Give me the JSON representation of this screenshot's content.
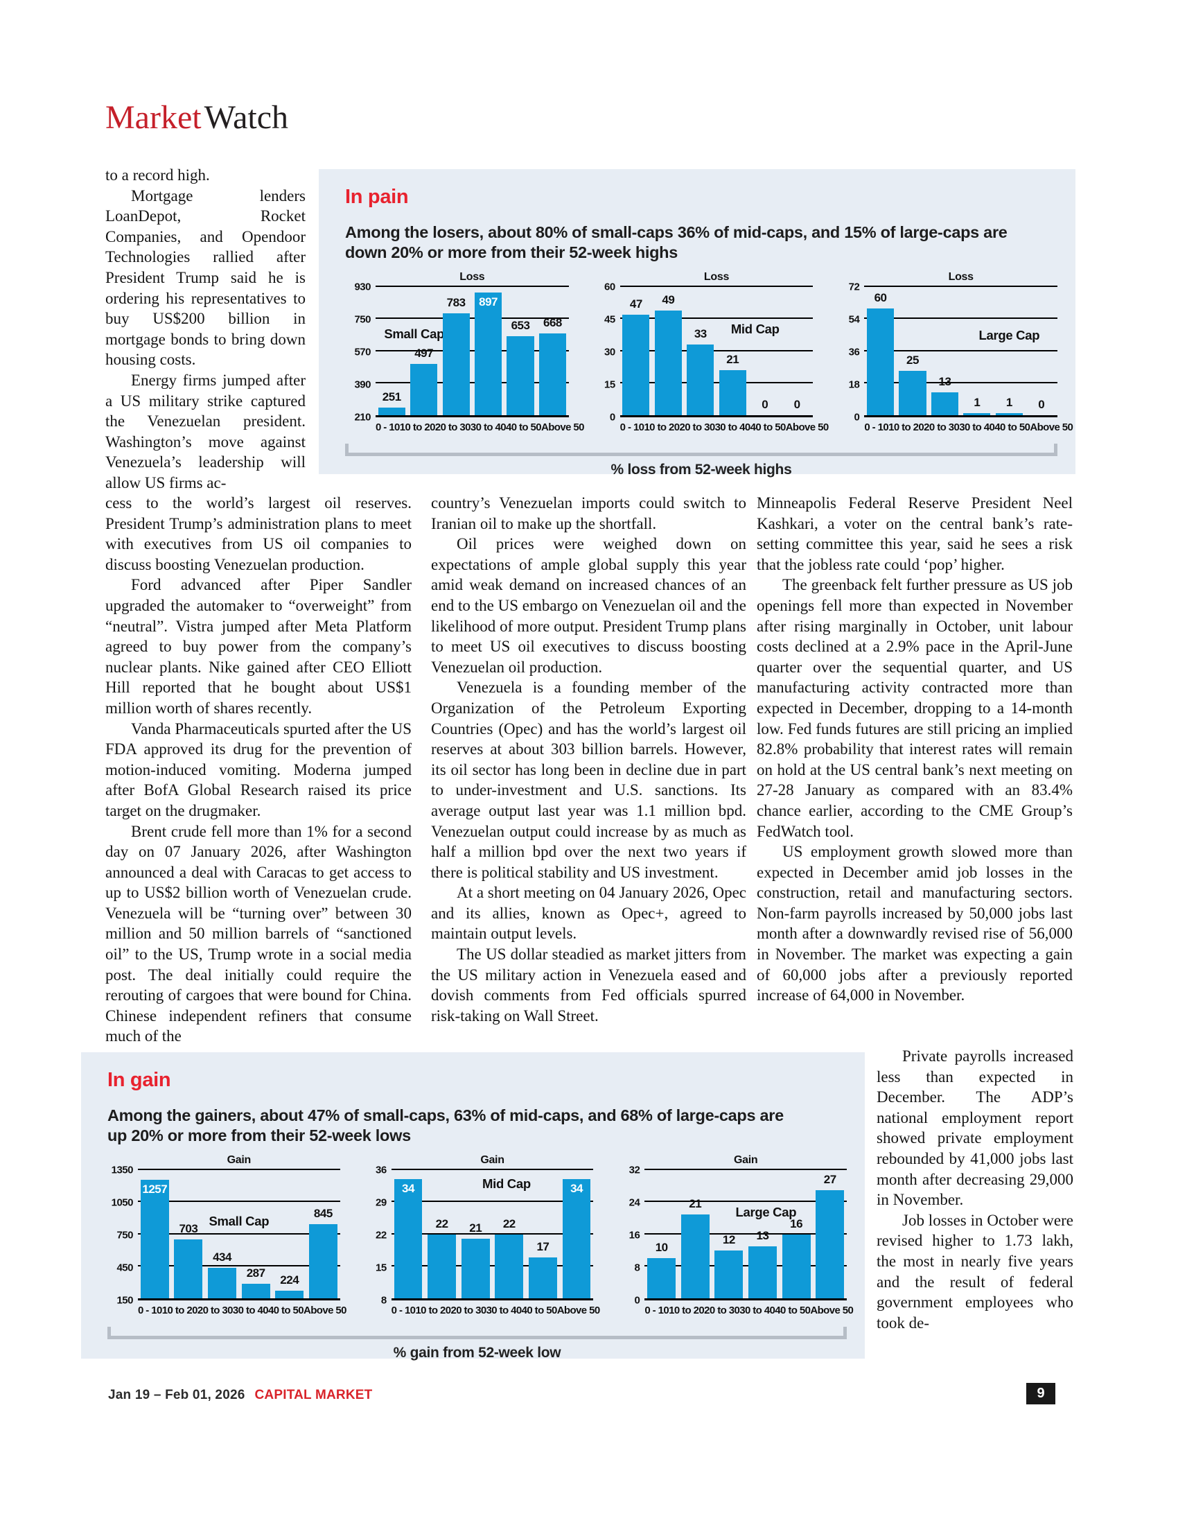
{
  "header": {
    "brand_red": "Market",
    "brand_dark": "Watch"
  },
  "colors": {
    "header_red": "#c5202a",
    "accent_red": "#e8222e",
    "footer_red": "#d9232a",
    "bar_blue": "#0f9ad7",
    "box_background": "#e7edf4",
    "bracket_grey": "#b6bdc6"
  },
  "columns": {
    "left_narrow": {
      "paragraphs": [
        "to a record high.",
        "Mortgage lenders LoanDepot, Rocket Companies, and Opendoor Technologies rallied after President Trump said he is ordering his representatives to buy US$200 billion in mortgage bonds to bring down housing costs.",
        "Energy firms jumped after a US military strike captured the Venezuelan president. Washington’s move against Venezuela’s leadership will allow US firms ac-"
      ]
    },
    "left_wide": {
      "paragraphs": [
        "cess to the world’s largest oil reserves. President Trump’s administration plans to meet with executives from US oil companies to discuss boosting Venezuelan production.",
        "Ford advanced after Piper Sandler upgraded the automaker to “overweight” from “neutral”. Vistra jumped after Meta Platform agreed to buy power from the company’s nuclear plants. Nike gained after CEO Elliott Hill reported that he bought about US$1 million worth of shares recently.",
        "Vanda Pharmaceuticals spurted after the US FDA approved its drug for the prevention of motion-induced vomiting. Moderna jumped after BofA Global Research raised its price target on the drugmaker.",
        "Brent crude fell more than 1% for a second day on 07 January 2026, after Washington announced a deal with Caracas to get access to up to US$2 billion worth of Venezuelan crude. Venezuela will be “turning over” between 30 million and 50 million barrels of “sanctioned oil” to the US, Trump wrote in a social media post. The deal initially could require the rerouting of cargoes that were bound for China. Chinese independent refiners that consume much of the"
      ]
    },
    "middle": {
      "paragraphs": [
        "country’s Venezuelan imports could switch to Iranian oil to make up the shortfall.",
        "Oil prices were weighed down on expectations of ample global supply this year amid weak demand on increased chances of an end to the US embargo on Venezuelan oil and the likelihood of more output. President Trump plans to meet US oil executives to discuss boosting Venezuelan oil production.",
        "Venezuela is a founding member of the Organization of the Petroleum Exporting Countries (Opec) and has the world’s largest oil reserves at about 303 billion barrels. However, its oil sector has long been in decline due in part to under-investment and U.S. sanctions. Its average output last year was 1.1 million bpd.  Venezuelan output could increase by as much as half a million bpd over the next two years if there is political stability and US investment.",
        "At a short meeting on 04 January 2026, Opec and its allies, known as Opec+, agreed to maintain output levels.",
        "The US dollar steadied as market jitters from the US military action in Venezuela eased and dovish comments from Fed officials spurred risk-taking on Wall Street."
      ]
    },
    "right": {
      "paragraphs": [
        "Minneapolis Federal Reserve President Neel Kashkari, a voter on the central bank’s rate-setting committee this year, said he sees a risk that the jobless rate could ‘pop’ higher.",
        "The greenback felt further pressure as US job openings fell more than expected in November after rising marginally in October, unit labour costs declined at a 2.9% pace in the April-June quarter over the sequential quarter, and US manufacturing activity contracted more than expected in December, dropping to a 14-month low. Fed funds futures are still pricing an implied 82.8% probability that interest rates will remain on hold at the US central bank’s next meeting on 27-28 January as compared with an 83.4% chance earlier, according to the CME Group’s FedWatch tool.",
        "US employment growth slowed more than expected in December amid job losses in the construction, retail and manufacturing sectors.  Non-farm payrolls increased by 50,000 jobs last month after a downwardly revised rise of 56,000 in November. The market was expecting a gain of 60,000 jobs after a previously reported increase of 64,000 in November."
      ]
    },
    "bottom_right": {
      "paragraphs": [
        "Private payrolls increased less than expected in December. The ADP’s national employment report showed private employment rebounded by 41,000 jobs last month after decreasing 29,000 in November.",
        "Job losses in October were revised higher to 1.73 lakh, the most in nearly five years and the result of federal government employees who took de-"
      ]
    }
  },
  "pain_box": {
    "title": "In pain",
    "subtitle": "Among the losers, about 80% of small-caps 36% of mid-caps, and 15% of large-caps are down 20% or more from their 52-week highs",
    "axis_caption": "% loss from 52-week highs"
  },
  "gain_box": {
    "title": "In gain",
    "subtitle": "Among the gainers, about 47% of small-caps, 63% of mid-caps, and 68% of large-caps are up 20% or more from their 52-week lows",
    "axis_caption": "% gain from 52-week low"
  },
  "chart_data": [
    {
      "type": "bar",
      "box": "In pain",
      "title": "Loss",
      "group_label": "Small Cap",
      "categories": [
        "0 - 10",
        "10 to 20",
        "20 to 30",
        "30 to 40",
        "40 to 50",
        "Above 50"
      ],
      "values": [
        251,
        497,
        783,
        897,
        653,
        668
      ],
      "y_ticks": [
        210,
        390,
        570,
        750,
        930
      ],
      "ylim": [
        210,
        930
      ],
      "label_x": 20,
      "label_y": 37
    },
    {
      "type": "bar",
      "box": "In pain",
      "title": "Loss",
      "group_label": "Mid Cap",
      "categories": [
        "0 - 10",
        "10 to 20",
        "20 to 30",
        "30 to 40",
        "40 to 50",
        "Above 50"
      ],
      "values": [
        47,
        49,
        33,
        21,
        0,
        0
      ],
      "y_ticks": [
        0,
        15,
        30,
        45,
        60
      ],
      "ylim": [
        0,
        60
      ],
      "label_x": 70,
      "label_y": 33
    },
    {
      "type": "bar",
      "box": "In pain",
      "title": "Loss",
      "group_label": "Large Cap",
      "categories": [
        "0 - 10",
        "10 to 20",
        "20 to 30",
        "30 to 40",
        "40 to 50",
        "Above 50"
      ],
      "values": [
        60,
        25,
        13,
        1,
        1,
        0
      ],
      "y_ticks": [
        0,
        18,
        36,
        54,
        72
      ],
      "ylim": [
        0,
        72
      ],
      "label_x": 75,
      "label_y": 38
    },
    {
      "type": "bar",
      "box": "In gain",
      "title": "Gain",
      "group_label": "Small Cap",
      "categories": [
        "0 - 10",
        "10 to 20",
        "20 to 30",
        "30 to 40",
        "40 to 50",
        "Above 50"
      ],
      "values": [
        1257,
        703,
        434,
        287,
        224,
        845
      ],
      "y_ticks": [
        150,
        450,
        750,
        1050,
        1350
      ],
      "ylim": [
        150,
        1350
      ],
      "label_x": 50,
      "label_y": 40
    },
    {
      "type": "bar",
      "box": "In gain",
      "title": "Gain",
      "group_label": "Mid Cap",
      "categories": [
        "0 - 10",
        "10 to 20",
        "20 to 30",
        "30 to 40",
        "40 to 50",
        "Above 50"
      ],
      "values": [
        34,
        22,
        21,
        22,
        17,
        34
      ],
      "y_ticks": [
        8,
        15,
        22,
        29,
        36
      ],
      "ylim": [
        8,
        36
      ],
      "label_x": 57,
      "label_y": 11
    },
    {
      "type": "bar",
      "box": "In gain",
      "title": "Gain",
      "group_label": "Large Cap",
      "categories": [
        "0 - 10",
        "10 to 20",
        "20 to 30",
        "30 to 40",
        "40 to 50",
        "Above 50"
      ],
      "values": [
        10,
        21,
        12,
        13,
        16,
        27
      ],
      "y_ticks": [
        0,
        8,
        16,
        24,
        32
      ],
      "ylim": [
        0,
        32
      ],
      "label_x": 60,
      "label_y": 33
    }
  ],
  "footer": {
    "date_range": "Jan 19 – Feb 01, 2026",
    "magazine": "CAPITAL MARKET",
    "page_number": "9"
  }
}
